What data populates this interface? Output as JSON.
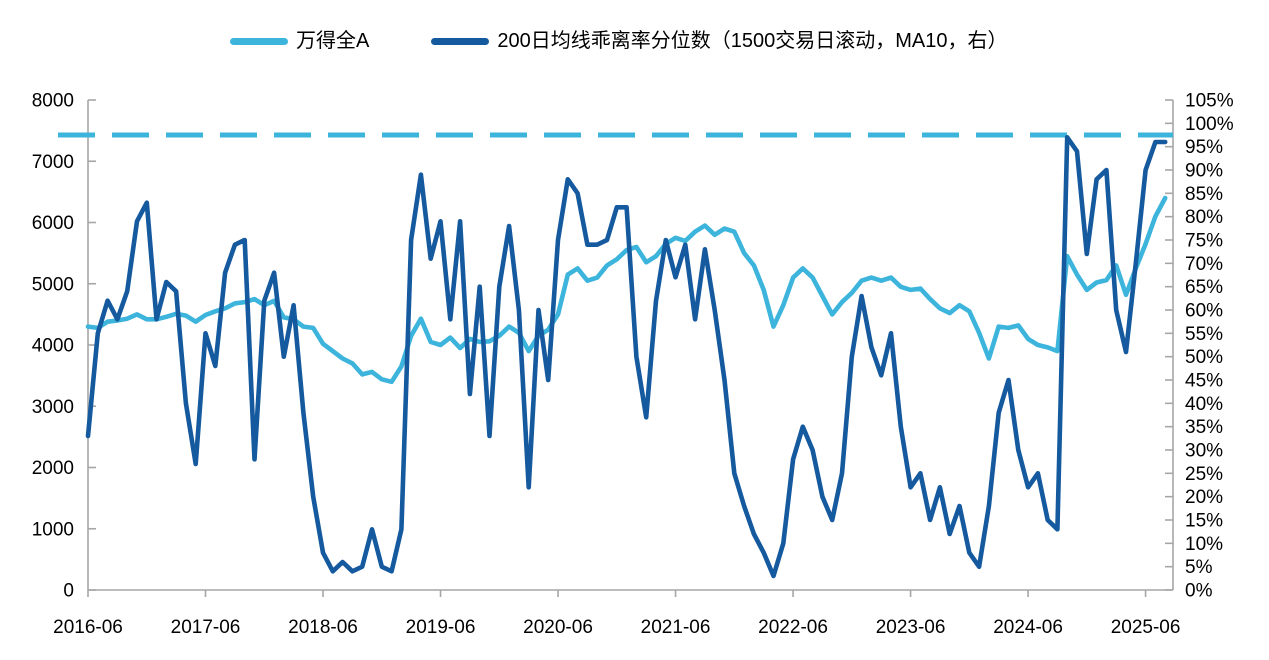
{
  "page": {
    "background": "#ffffff"
  },
  "legend": {
    "items": [
      {
        "label": "万得全A",
        "color": "#3CB4DC"
      },
      {
        "label": "200日均线乖离率分位数（1500交易日滚动，MA10，右）",
        "color": "#15599E"
      }
    ]
  },
  "chart_data": {
    "type": "line",
    "title": "",
    "x_unit": "months since 2016-06",
    "x_domain": [
      0,
      110.8
    ],
    "x_ticks": {
      "months": [
        0,
        12,
        24,
        36,
        48,
        60,
        72,
        84,
        96,
        108
      ],
      "labels": [
        "2016-06",
        "2017-06",
        "2018-06",
        "2019-06",
        "2020-06",
        "2021-06",
        "2022-06",
        "2023-06",
        "2024-06",
        "2025-06"
      ]
    },
    "left_axis": {
      "min": 0,
      "max": 8000,
      "step": 1000,
      "labels": [
        "8000",
        "7000",
        "6000",
        "5000",
        "4000",
        "3000",
        "2000",
        "1000",
        "0"
      ]
    },
    "right_axis": {
      "min": 0,
      "max": 105,
      "step": 5,
      "unit": "%",
      "labels": [
        "105%",
        "100%",
        "95%",
        "90%",
        "85%",
        "80%",
        "75%",
        "70%",
        "65%",
        "60%",
        "55%",
        "50%",
        "45%",
        "40%",
        "35%",
        "30%",
        "25%",
        "20%",
        "15%",
        "10%",
        "5%",
        "0%"
      ]
    },
    "reference_line": {
      "axis": "right",
      "value": 97.5,
      "style": "dashed",
      "color": "#3CB4DC"
    },
    "axis_color": "#A6A6A6",
    "text_color": "#000000",
    "grid": false,
    "legend_position": "top",
    "series": [
      {
        "name": "万得全A",
        "axis": "left",
        "color": "#3CB4DC",
        "values": [
          4300,
          4280,
          4380,
          4400,
          4430,
          4500,
          4420,
          4420,
          4460,
          4510,
          4480,
          4380,
          4490,
          4550,
          4600,
          4680,
          4700,
          4750,
          4650,
          4720,
          4450,
          4420,
          4300,
          4280,
          4020,
          3900,
          3780,
          3700,
          3520,
          3560,
          3440,
          3400,
          3650,
          4150,
          4430,
          4050,
          4000,
          4120,
          3950,
          4100,
          4050,
          4060,
          4150,
          4300,
          4200,
          3900,
          4150,
          4250,
          4500,
          5150,
          5250,
          5050,
          5100,
          5300,
          5400,
          5550,
          5600,
          5350,
          5450,
          5650,
          5750,
          5700,
          5850,
          5950,
          5800,
          5900,
          5850,
          5500,
          5300,
          4900,
          4300,
          4650,
          5100,
          5250,
          5100,
          4800,
          4500,
          4700,
          4850,
          5050,
          5100,
          5050,
          5100,
          4950,
          4900,
          4920,
          4750,
          4600,
          4520,
          4650,
          4550,
          4200,
          3780,
          4300,
          4280,
          4320,
          4100,
          4000,
          3960,
          3900,
          5450,
          5150,
          4900,
          5020,
          5060,
          5300,
          4820,
          5250,
          5650,
          6100,
          6400
        ]
      },
      {
        "name": "200日均线乖离率分位数（1500交易日滚动，MA10，右）",
        "axis": "right",
        "color": "#15599E",
        "values": [
          33,
          55,
          62,
          58,
          64,
          79,
          83,
          58,
          66,
          64,
          40,
          27,
          55,
          48,
          68,
          74,
          75,
          28,
          62,
          68,
          50,
          61,
          38,
          20,
          8,
          4,
          6,
          4,
          5,
          13,
          5,
          4,
          13,
          75,
          89,
          71,
          79,
          58,
          79,
          42,
          65,
          33,
          65,
          78,
          60,
          22,
          60,
          45,
          75,
          88,
          85,
          74,
          74,
          75,
          82,
          82,
          50,
          37,
          62,
          75,
          67,
          74,
          58,
          73,
          60,
          45,
          25,
          18,
          12,
          8,
          3,
          10,
          28,
          35,
          30,
          20,
          15,
          25,
          50,
          63,
          52,
          46,
          55,
          35,
          22,
          25,
          15,
          22,
          12,
          18,
          8,
          5,
          18,
          38,
          45,
          30,
          22,
          25,
          15,
          13,
          97,
          94,
          72,
          88,
          90,
          60,
          51,
          70,
          90,
          96,
          96
        ]
      }
    ]
  }
}
